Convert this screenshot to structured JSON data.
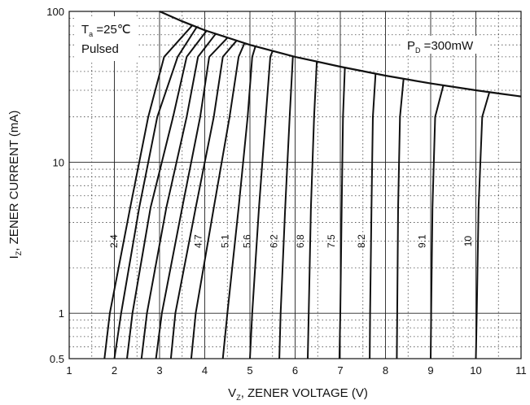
{
  "chart_data": {
    "type": "line",
    "x_axis": {
      "ticks": [
        "1",
        "2",
        "3",
        "4",
        "5",
        "6",
        "7",
        "8",
        "9",
        "10",
        "11"
      ],
      "range": [
        1,
        11
      ],
      "label_main": "V",
      "label_sub": "Z",
      "label_rest": ", ZENER VOLTAGE (V)"
    },
    "y_axis": {
      "scale": "log",
      "range": [
        0.5,
        100
      ],
      "ticks": [
        "0.5",
        "1",
        "10",
        "100"
      ],
      "label_main": "I",
      "label_sub": "Z",
      "label_rest": ", ZENER CURRENT (mA)"
    },
    "grid": true,
    "annotations": {
      "ta_main": "T",
      "ta_sub": "a",
      "ta_rest": " =25℃",
      "pulsed": "Pulsed",
      "pd_main": "P",
      "pd_sub": "D",
      "pd_rest": " =300mW"
    },
    "power_limit": {
      "name": "P_D = 300mW",
      "points": [
        [
          3.0,
          100
        ],
        [
          3.5,
          86
        ],
        [
          4.0,
          75
        ],
        [
          5.0,
          60
        ],
        [
          6.0,
          50
        ],
        [
          7.0,
          43
        ],
        [
          8.0,
          37.5
        ],
        [
          9.0,
          33.3
        ],
        [
          10.0,
          30
        ],
        [
          10.5,
          28.6
        ],
        [
          11.0,
          27.3
        ]
      ]
    },
    "series": [
      {
        "name": "2.4",
        "points": [
          [
            1.78,
            0.5
          ],
          [
            1.9,
            1
          ],
          [
            2.35,
            5
          ],
          [
            2.75,
            20
          ],
          [
            3.1,
            50
          ],
          [
            3.72,
            80.6
          ]
        ]
      },
      {
        "name": "",
        "points": [
          [
            2.0,
            0.5
          ],
          [
            2.15,
            1
          ],
          [
            2.55,
            5
          ],
          [
            2.95,
            20
          ],
          [
            3.4,
            50
          ],
          [
            3.82,
            78.5
          ]
        ]
      },
      {
        "name": "",
        "points": [
          [
            2.28,
            0.5
          ],
          [
            2.4,
            1
          ],
          [
            2.8,
            5
          ],
          [
            3.3,
            20
          ],
          [
            3.6,
            50
          ],
          [
            4.04,
            74.3
          ]
        ]
      },
      {
        "name": "",
        "points": [
          [
            2.6,
            0.5
          ],
          [
            2.72,
            1
          ],
          [
            3.15,
            5
          ],
          [
            3.6,
            20
          ],
          [
            3.85,
            50
          ],
          [
            4.24,
            70.8
          ]
        ]
      },
      {
        "name": "",
        "points": [
          [
            2.92,
            0.5
          ],
          [
            3.05,
            1
          ],
          [
            3.5,
            5
          ],
          [
            3.9,
            20
          ],
          [
            4.1,
            50
          ],
          [
            4.5,
            66.7
          ]
        ]
      },
      {
        "name": "",
        "points": [
          [
            3.25,
            0.5
          ],
          [
            3.35,
            1
          ],
          [
            3.8,
            5
          ],
          [
            4.2,
            20
          ],
          [
            4.4,
            50
          ],
          [
            4.7,
            63.8
          ]
        ]
      },
      {
        "name": "4.7",
        "points": [
          [
            3.7,
            0.5
          ],
          [
            3.8,
            1
          ],
          [
            4.2,
            5
          ],
          [
            4.55,
            20
          ],
          [
            4.75,
            50
          ],
          [
            4.88,
            61.5
          ]
        ]
      },
      {
        "name": "5.1",
        "points": [
          [
            4.4,
            0.5
          ],
          [
            4.5,
            1
          ],
          [
            4.75,
            5
          ],
          [
            4.95,
            20
          ],
          [
            5.05,
            50
          ],
          [
            5.12,
            58.6
          ]
        ]
      },
      {
        "name": "5.6",
        "points": [
          [
            5.0,
            0.5
          ],
          [
            5.05,
            1
          ],
          [
            5.2,
            5
          ],
          [
            5.35,
            20
          ],
          [
            5.45,
            50
          ],
          [
            5.5,
            54.5
          ]
        ]
      },
      {
        "name": "6.2",
        "points": [
          [
            5.65,
            0.5
          ],
          [
            5.68,
            1
          ],
          [
            5.78,
            5
          ],
          [
            5.88,
            20
          ],
          [
            5.95,
            50
          ],
          [
            5.97,
            50.3
          ]
        ]
      },
      {
        "name": "6.8",
        "points": [
          [
            6.28,
            0.5
          ],
          [
            6.3,
            1
          ],
          [
            6.35,
            5
          ],
          [
            6.42,
            20
          ],
          [
            6.48,
            46.3
          ]
        ]
      },
      {
        "name": "7.5",
        "points": [
          [
            6.98,
            0.5
          ],
          [
            7.0,
            1
          ],
          [
            7.03,
            5
          ],
          [
            7.06,
            20
          ],
          [
            7.1,
            42.3
          ]
        ]
      },
      {
        "name": "8.2",
        "points": [
          [
            7.65,
            0.5
          ],
          [
            7.66,
            1
          ],
          [
            7.69,
            5
          ],
          [
            7.72,
            20
          ],
          [
            7.78,
            38.6
          ]
        ]
      },
      {
        "name": "",
        "points": [
          [
            8.25,
            0.5
          ],
          [
            8.26,
            1
          ],
          [
            8.28,
            5
          ],
          [
            8.32,
            20
          ],
          [
            8.4,
            35.7
          ]
        ]
      },
      {
        "name": "9.1",
        "points": [
          [
            9.0,
            0.5
          ],
          [
            9.01,
            1
          ],
          [
            9.04,
            5
          ],
          [
            9.1,
            20
          ],
          [
            9.28,
            32.3
          ]
        ]
      },
      {
        "name": "10",
        "points": [
          [
            10.0,
            0.5
          ],
          [
            10.02,
            1
          ],
          [
            10.06,
            5
          ],
          [
            10.14,
            20
          ],
          [
            10.3,
            29.1
          ]
        ]
      }
    ]
  }
}
